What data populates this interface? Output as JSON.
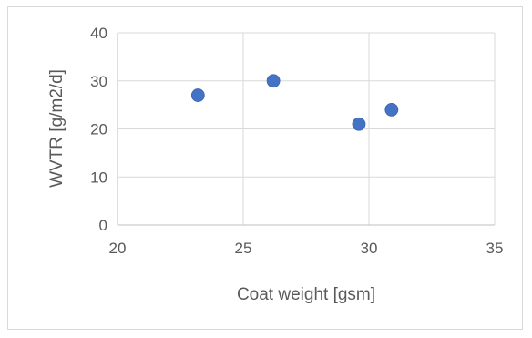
{
  "chart_data": {
    "type": "scatter",
    "title": "",
    "xlabel": "Coat weight [gsm]",
    "ylabel": "WVTR [g/m2/d]",
    "xlim": [
      20,
      35
    ],
    "ylim": [
      0,
      40
    ],
    "xticks": [
      20,
      25,
      30,
      35
    ],
    "yticks": [
      0,
      10,
      20,
      30,
      40
    ],
    "grid": true,
    "legend": "none",
    "series": [
      {
        "color": "#4472c4",
        "points": [
          {
            "x": 23.2,
            "y": 27
          },
          {
            "x": 26.2,
            "y": 30
          },
          {
            "x": 29.6,
            "y": 21
          },
          {
            "x": 30.9,
            "y": 24
          }
        ]
      }
    ]
  }
}
